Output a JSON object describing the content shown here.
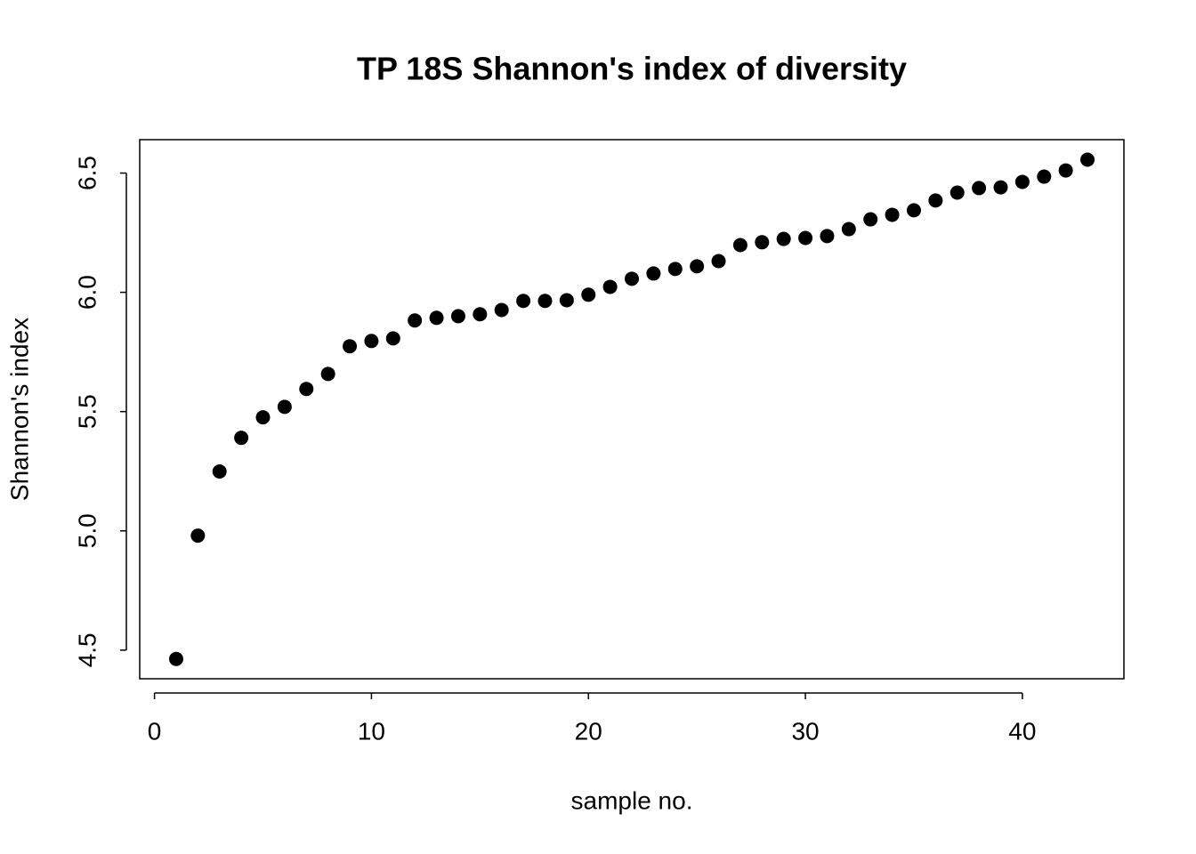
{
  "chart_data": {
    "type": "scatter",
    "title": "TP 18S Shannon's index of diversity",
    "x_label": "sample no.",
    "y_label": "Shannon's index",
    "color": "#000000",
    "x": [
      1,
      2,
      3,
      4,
      5,
      6,
      7,
      8,
      9,
      10,
      11,
      12,
      13,
      14,
      15,
      16,
      17,
      18,
      19,
      20,
      21,
      22,
      23,
      24,
      25,
      26,
      27,
      28,
      29,
      30,
      31,
      32,
      33,
      34,
      35,
      36,
      37,
      38,
      39,
      40,
      41,
      42,
      43
    ],
    "values": [
      4.463,
      4.98,
      5.249,
      5.39,
      5.476,
      5.52,
      5.595,
      5.658,
      5.774,
      5.796,
      5.807,
      5.882,
      5.893,
      5.9,
      5.908,
      5.926,
      5.964,
      5.964,
      5.967,
      5.99,
      6.023,
      6.057,
      6.079,
      6.098,
      6.109,
      6.131,
      6.198,
      6.21,
      6.224,
      6.228,
      6.236,
      6.265,
      6.306,
      6.325,
      6.344,
      6.385,
      6.418,
      6.437,
      6.44,
      6.463,
      6.485,
      6.511,
      6.556
    ],
    "xlim": [
      -0.68,
      44.68
    ],
    "ylim": [
      4.38,
      6.64
    ],
    "xticks": [
      0,
      10,
      20,
      30,
      40
    ],
    "yticks": [
      4.5,
      {
        "value": 5,
        "label": "5.0"
      },
      5.5,
      {
        "value": 6,
        "label": "6.0"
      },
      6.5
    ]
  }
}
